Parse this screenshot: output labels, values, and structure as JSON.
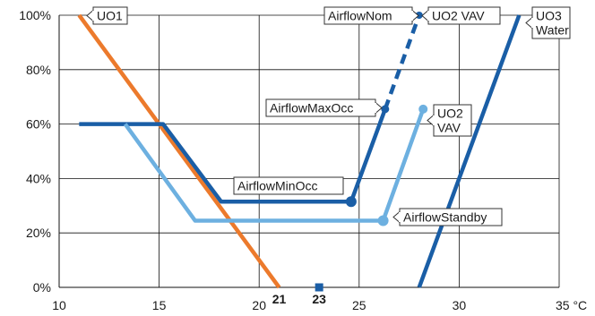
{
  "chart_data": {
    "type": "line",
    "x_unit": "°C",
    "xlim": [
      10,
      35
    ],
    "ylim": [
      0,
      100
    ],
    "x_ticks": [
      10,
      15,
      20,
      25,
      30,
      35
    ],
    "x_tick_labels": [
      "10",
      "15",
      "20",
      "25",
      "30",
      "35 °C"
    ],
    "y_ticks": [
      0,
      20,
      40,
      60,
      80,
      100
    ],
    "y_tick_labels": [
      "0%",
      "20%",
      "40%",
      "60%",
      "80%",
      "100%"
    ],
    "grid": true,
    "highlight_ticks": [
      {
        "x": 21,
        "label": "21"
      },
      {
        "x": 23,
        "label": "23"
      }
    ],
    "setpoint_marker": {
      "x": 23,
      "y": 0,
      "color": "#1a5ea6"
    },
    "series": [
      {
        "name": "UO1",
        "color": "#ec7a2c",
        "dashed": false,
        "points": [
          [
            11,
            100
          ],
          [
            21,
            0
          ]
        ]
      },
      {
        "name": "UO2 VAV",
        "color": "#1a5ea6",
        "dashed": false,
        "points": [
          [
            11,
            60
          ],
          [
            15.2,
            60
          ],
          [
            18.1,
            31.5
          ],
          [
            24.6,
            31.5
          ],
          [
            26.3,
            65.5
          ]
        ]
      },
      {
        "name": "UO2 VAV",
        "color": "#1a5ea6",
        "dashed": true,
        "points": [
          [
            26.3,
            65.5
          ],
          [
            28,
            100
          ]
        ]
      },
      {
        "name": "UO2 VAV",
        "color": "#6db0e0",
        "dashed": false,
        "points": [
          [
            13.3,
            60
          ],
          [
            16.8,
            24.5
          ],
          [
            26.2,
            24.5
          ],
          [
            28.2,
            65.5
          ]
        ]
      },
      {
        "name": "UO3 Water",
        "color": "#1a5ea6",
        "dashed": false,
        "points": [
          [
            28,
            0
          ],
          [
            33,
            100
          ]
        ]
      }
    ],
    "markers": [
      {
        "x": 24.6,
        "y": 31.5,
        "r": 6,
        "color": "#1a5ea6"
      },
      {
        "x": 26.3,
        "y": 65.5,
        "r": 4.5,
        "color": "#1a5ea6"
      },
      {
        "x": 28,
        "y": 100,
        "r": 4,
        "color": "#1a5ea6"
      },
      {
        "x": 26.2,
        "y": 24.5,
        "r": 6,
        "color": "#6db0e0"
      },
      {
        "x": 28.2,
        "y": 65.5,
        "r": 5,
        "color": "#6db0e0"
      }
    ],
    "annotations": [
      {
        "id": "uo1",
        "lines": [
          "UO1"
        ]
      },
      {
        "id": "airflow-nom",
        "lines": [
          "AirflowNom"
        ]
      },
      {
        "id": "uo2-vav-top",
        "lines": [
          "UO2 VAV"
        ]
      },
      {
        "id": "uo3-water",
        "lines": [
          "UO3",
          "Water"
        ]
      },
      {
        "id": "airflow-max-occ",
        "lines": [
          "AirflowMaxOcc"
        ]
      },
      {
        "id": "uo2-vav-right",
        "lines": [
          "UO2",
          "VAV"
        ]
      },
      {
        "id": "airflow-min-occ",
        "lines": [
          "AirflowMinOcc"
        ]
      },
      {
        "id": "airflow-standby",
        "lines": [
          "AirflowStandby"
        ]
      }
    ]
  }
}
